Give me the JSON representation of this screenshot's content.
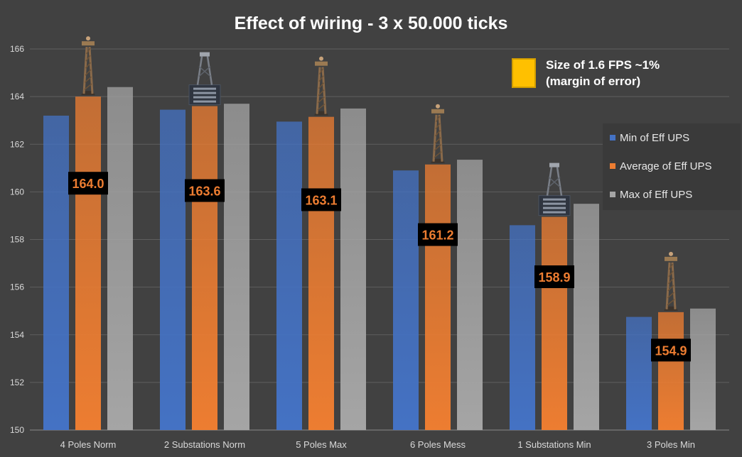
{
  "chart_data": {
    "type": "bar",
    "title": "Effect of wiring - 3 x 50.000 ticks",
    "xlabel": "",
    "ylabel": "",
    "ylim": [
      150,
      166
    ],
    "yticks": [
      150,
      152,
      154,
      156,
      158,
      160,
      162,
      164,
      166
    ],
    "grid": true,
    "legend_position": "right",
    "categories": [
      "4 Poles Norm",
      "2 Substations Norm",
      "5 Poles Max",
      "6 Poles Mess",
      "1 Substations Min",
      "3 Poles Min"
    ],
    "series": [
      {
        "name": "Min of Eff UPS",
        "color": "#4472C4",
        "values": [
          163.2,
          163.45,
          162.95,
          160.9,
          158.6,
          154.75
        ]
      },
      {
        "name": "Average of Eff UPS",
        "color": "#ED7D31",
        "values": [
          164.0,
          163.6,
          163.15,
          161.15,
          158.95,
          154.95
        ]
      },
      {
        "name": "Max of Eff UPS",
        "color": "#A5A5A5",
        "values": [
          164.4,
          163.7,
          163.5,
          161.35,
          159.5,
          155.1
        ]
      }
    ],
    "data_labels": [
      "164.0",
      "163.6",
      "163.1",
      "161.2",
      "158.9",
      "154.9"
    ],
    "icons": [
      "medium-pole-icon",
      "substation-icon",
      "medium-pole-icon",
      "medium-pole-icon",
      "substation-icon",
      "medium-pole-icon"
    ]
  },
  "note": {
    "swatch_color": "#FFC000",
    "line1": "Size of 1.6 FPS ~1%",
    "line2": "(margin of error)"
  }
}
